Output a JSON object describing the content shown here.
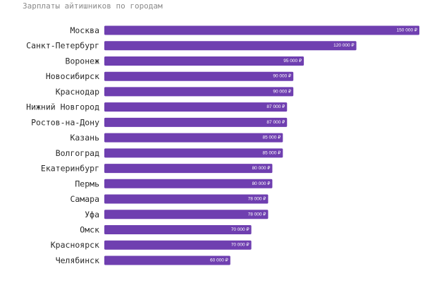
{
  "chart_data": {
    "type": "bar",
    "orientation": "horizontal",
    "title": "Зарплаты айтишников по городам",
    "categories": [
      "Москва",
      "Санкт-Петербург",
      "Воронеж",
      "Новосибирск",
      "Краснодар",
      "Нижний Новгород",
      "Ростов-на-Дону",
      "Казань",
      "Волгоград",
      "Екатеринбург",
      "Пермь",
      "Самара",
      "Уфа",
      "Омск",
      "Красноярск",
      "Челябинск"
    ],
    "values": [
      150000,
      120000,
      95000,
      90000,
      90000,
      87000,
      87000,
      85000,
      85000,
      80000,
      80000,
      78000,
      78000,
      70000,
      70000,
      60000
    ],
    "value_labels": [
      "150 000 ₽",
      "120 000 ₽",
      "95 000 ₽",
      "90 000 ₽",
      "90 000 ₽",
      "87 000 ₽",
      "87 000 ₽",
      "85 000 ₽",
      "85 000 ₽",
      "80 000 ₽",
      "80 000 ₽",
      "78 000 ₽",
      "78 000 ₽",
      "70 000 ₽",
      "70 000 ₽",
      "60 000 ₽"
    ],
    "xlim": [
      0,
      150000
    ],
    "grid": false,
    "colors": {
      "bar": "#6f3fb0"
    }
  }
}
